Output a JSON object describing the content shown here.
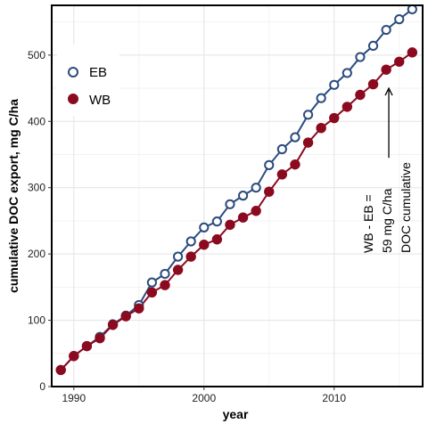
{
  "chart_data": {
    "type": "line",
    "title": "",
    "xlabel": "year",
    "ylabel": "cumulative DOC export, mg C/ha",
    "xlim": [
      1988.3,
      2016.8
    ],
    "ylim": [
      0,
      575
    ],
    "xticks": [
      1990,
      2000,
      2010
    ],
    "yticks": [
      0,
      100,
      200,
      300,
      400,
      500
    ],
    "grid": true,
    "legend_position": "top-left",
    "series": [
      {
        "name": "EB",
        "marker": "open-circle",
        "color": "#2b4b7e",
        "x": [
          1989,
          1990,
          1991,
          1992,
          1993,
          1994,
          1995,
          1996,
          1997,
          1998,
          1999,
          2000,
          2001,
          2002,
          2003,
          2004,
          2005,
          2006,
          2007,
          2008,
          2009,
          2010,
          2011,
          2012,
          2013,
          2014,
          2015,
          2016
        ],
        "y": [
          25,
          46,
          61,
          75,
          94,
          107,
          123,
          157,
          170,
          196,
          219,
          240,
          249,
          275,
          288,
          300,
          334,
          358,
          376,
          410,
          435,
          455,
          473,
          497,
          514,
          538,
          554,
          569
        ]
      },
      {
        "name": "WB",
        "marker": "filled-circle",
        "color": "#8b0a1f",
        "x": [
          1989,
          1990,
          1991,
          1992,
          1993,
          1994,
          1995,
          1996,
          1997,
          1998,
          1999,
          2000,
          2001,
          2002,
          2003,
          2004,
          2005,
          2006,
          2007,
          2008,
          2009,
          2010,
          2011,
          2012,
          2013,
          2014,
          2015,
          2016
        ],
        "y": [
          25,
          46,
          61,
          73,
          93,
          106,
          118,
          142,
          153,
          176,
          196,
          214,
          222,
          244,
          255,
          265,
          294,
          320,
          335,
          368,
          390,
          405,
          422,
          440,
          456,
          478,
          490,
          504
        ]
      }
    ],
    "annotations": [
      {
        "lines": [
          "WB - EB =",
          "59 mg C/ha",
          "DOC cumulative"
        ],
        "arrow": "up",
        "arrow_x": 2014.2,
        "arrow_y_from": 345,
        "arrow_y_to": 450
      }
    ]
  }
}
